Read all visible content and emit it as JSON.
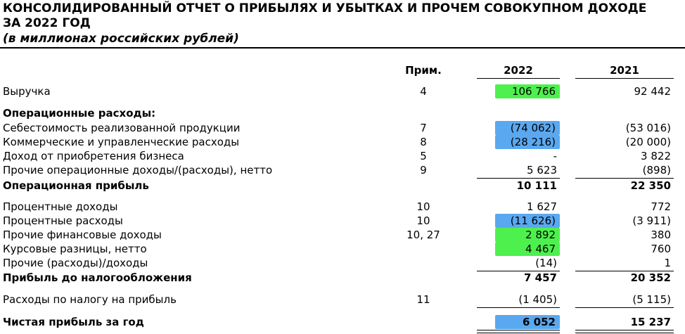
{
  "report": {
    "title_line1": "КОНСОЛИДИРОВАННЫЙ ОТЧЕТ О ПРИБЫЛЯХ И УБЫТКАХ И ПРОЧЕМ СОВОКУПНОМ ДОХОДЕ",
    "title_line2": "ЗА 2022 ГОД",
    "subtitle": "(в миллионах российских рублей)"
  },
  "columns": {
    "note": "Прим.",
    "year1": "2022",
    "year2": "2021"
  },
  "rows": [
    {
      "label": "Выручка",
      "note": "4",
      "v2022": "106 766",
      "v2021": "92 442",
      "highlight": "green"
    },
    {
      "label": "Операционные расходы:",
      "bold": true
    },
    {
      "label": "Себестоимость реализованной продукции",
      "note": "7",
      "v2022": "(74 062)",
      "v2021": "(53 016)",
      "highlight": "blue"
    },
    {
      "label": "Коммерческие и управленческие расходы",
      "note": "8",
      "v2022": "(28 216)",
      "v2021": "(20 000)",
      "highlight": "blue"
    },
    {
      "label": "Доход от приобретения бизнеса",
      "note": "5",
      "v2022": "-",
      "v2021": "3 822"
    },
    {
      "label": "Прочие операционные доходы/(расходы), нетто",
      "note": "9",
      "v2022": "5 623",
      "v2021": "(898)"
    },
    {
      "label": "Операционная прибыль",
      "bold": true,
      "v2022": "10 111",
      "v2021": "22 350"
    },
    {
      "label": "Процентные доходы",
      "note": "10",
      "v2022": "1 627",
      "v2021": "772"
    },
    {
      "label": "Процентные расходы",
      "note": "10",
      "v2022": "(11 626)",
      "v2021": "(3 911)",
      "highlight": "blue"
    },
    {
      "label": "Прочие финансовые доходы",
      "note": "10, 27",
      "v2022": "2 892",
      "v2021": "380",
      "highlight": "green"
    },
    {
      "label": "Курсовые разницы, нетто",
      "v2022": "4 467",
      "v2021": "760",
      "highlight": "green"
    },
    {
      "label": "Прочие (расходы)/доходы",
      "v2022": "(14)",
      "v2021": "1"
    },
    {
      "label": "Прибыль до налогообложения",
      "bold": true,
      "v2022": "7 457",
      "v2021": "20 352"
    },
    {
      "label": "Расходы по налогу на прибыль",
      "note": "11",
      "v2022": "(1 405)",
      "v2021": "(5 115)"
    },
    {
      "label": "Чистая прибыль за год",
      "bold": true,
      "v2022": "6 052",
      "v2021": "15 237",
      "highlight": "blue"
    }
  ],
  "colors": {
    "green_highlight": "#4ef04e",
    "blue_highlight": "#5aa8f0"
  }
}
